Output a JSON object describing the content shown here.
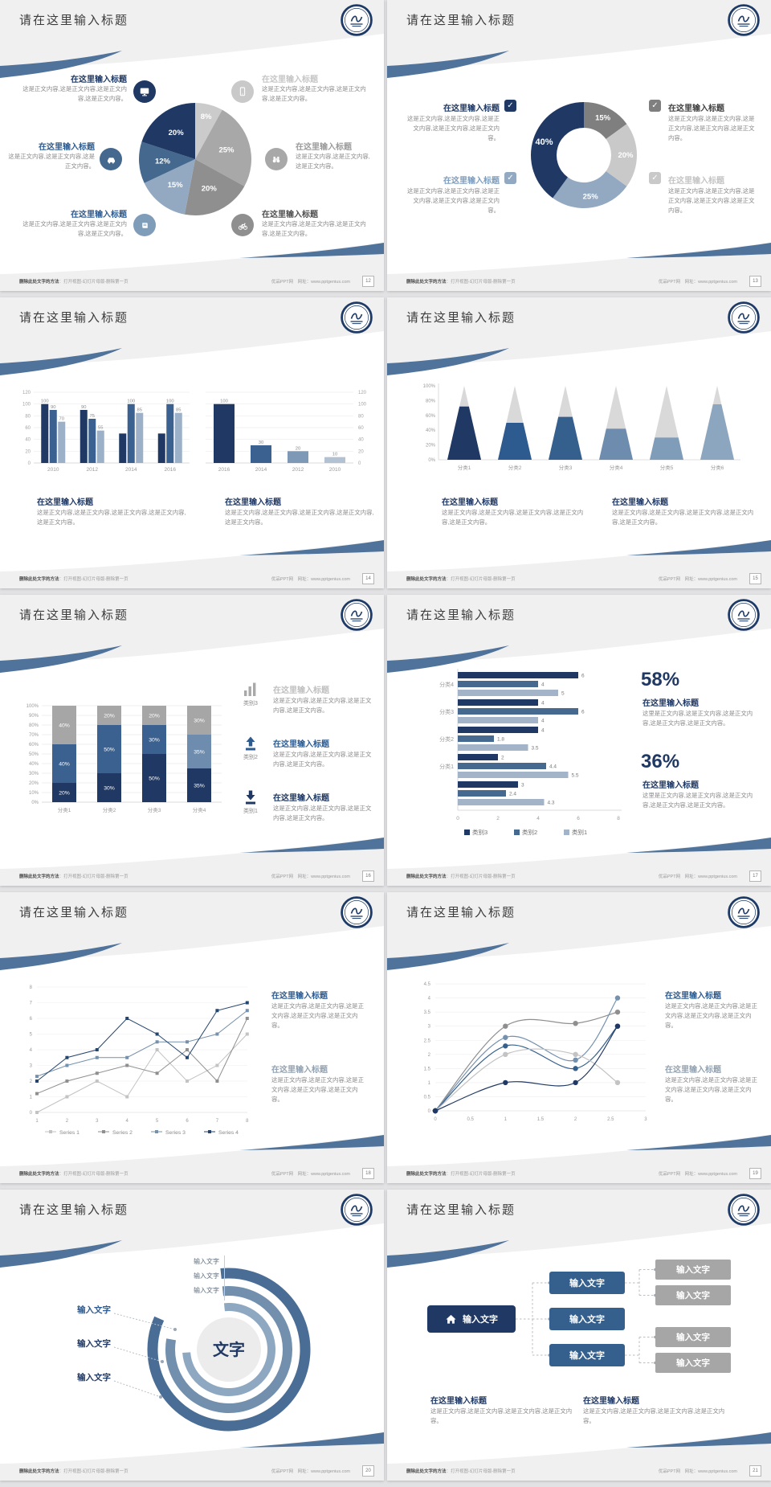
{
  "footer": {
    "left_bold": "删除此处文字的方法",
    "left_rest": "：打开视图-幻灯片母版-删除第一页",
    "right": "优品PPT网　网址：www.pptgenius.com"
  },
  "colors": {
    "accent_navy": "#1f3864",
    "accent_blue": "#2e5b8f",
    "accent_steel": "#8ca6c0",
    "swoosh_stripe": "#50739b",
    "band_gray": "#f0f0f1"
  },
  "slides": [
    {
      "page": "12",
      "title": "请在这里输入标题",
      "icons": [
        "monitor",
        "smartphone",
        "car",
        "binoculars",
        "book",
        "bicycle"
      ],
      "blocks": [
        {
          "h": "在这里输入标题",
          "b": "这是正文内容,这是正文内容,这是正文内容,这是正文内容。"
        },
        {
          "h": "在这里输入标题",
          "b": "这是正文内容,这是正文内容,这是正文内容,这是正文内容。"
        },
        {
          "h": "在这里输入标题",
          "b": "这是正文内容,这是正文内容,这是正文内容。"
        },
        {
          "h": "在这里输入标题",
          "b": "这是正文内容,这是正文内容,这是正文内容。"
        },
        {
          "h": "在这里输入标题",
          "b": "这是正文内容,这是正文内容,这是正文内容,这是正文内容。"
        },
        {
          "h": "在这里输入标题",
          "b": "这是正文内容,这是正文内容,这是正文内容,这是正文内容。"
        }
      ]
    },
    {
      "page": "13",
      "title": "请在这里输入标题",
      "blocks": [
        {
          "h": "在这里输入标题",
          "b": "这是正文内容,这是正文内容,这是正文内容,这是正文内容,这是正文内容。"
        },
        {
          "h": "在这里输入标题",
          "b": "这是正文内容,这是正文内容,这是正文内容,这是正文内容,这是正文内容。"
        },
        {
          "h": "在这里输入标题",
          "b": "这是正文内容,这是正文内容,这是正文内容,这是正文内容,这是正文内容。"
        },
        {
          "h": "在这里输入标题",
          "b": "这是正文内容,这是正文内容,这是正文内容,这是正文内容,这是正文内容。"
        }
      ]
    },
    {
      "page": "14",
      "title": "请在这里输入标题",
      "blocks": [
        {
          "h": "在这里输入标题",
          "b": "这是正文内容,这是正文内容,这是正文内容,这是正文内容,这是正文内容。"
        },
        {
          "h": "在这里输入标题",
          "b": "这是正文内容,这是正文内容,这是正文内容,这是正文内容,这是正文内容。"
        }
      ]
    },
    {
      "page": "15",
      "title": "请在这里输入标题",
      "blocks": [
        {
          "h": "在这里输入标题",
          "b": "这是正文内容,这是正文内容,这是正文内容,这是正文内容,这是正文内容。"
        },
        {
          "h": "在这里输入标题",
          "b": "这是正文内容,这是正文内容,这是正文内容,这是正文内容,这是正文内容。"
        }
      ]
    },
    {
      "page": "16",
      "title": "请在这里输入标题",
      "blocks": [
        {
          "label": "类别3",
          "h": "在这里输入标题",
          "b": "这是正文内容,这是正文内容,这是正文内容,这是正文内容。"
        },
        {
          "label": "类别2",
          "h": "在这里输入标题",
          "b": "这是正文内容,这是正文内容,这是正文内容,这是正文内容。"
        },
        {
          "label": "类别1",
          "h": "在这里输入标题",
          "b": "这是正文内容,这是正文内容,这是正文内容,这是正文内容。"
        }
      ]
    },
    {
      "page": "17",
      "title": "请在这里输入标题",
      "stats": [
        {
          "pct": "58%",
          "h": "在这里输入标题",
          "b": "这里是正文内容,这是正文内容,这是正文内容,这是正文内容,这是正文内容。"
        },
        {
          "pct": "36%",
          "h": "在这里输入标题",
          "b": "这里是正文内容,这是正文内容,这是正文内容,这是正文内容,这是正文内容。"
        }
      ]
    },
    {
      "page": "18",
      "title": "请在这里输入标题",
      "blocks": [
        {
          "h": "在这里输入标题",
          "b": "这是正文内容,这是正文内容,这是正文内容,这是正文内容,这是正文内容。"
        },
        {
          "h": "在这里输入标题",
          "b": "这是正文内容,这是正文内容,这是正文内容,这是正文内容,这是正文内容。"
        }
      ]
    },
    {
      "page": "19",
      "title": "请在这里输入标题",
      "blocks": [
        {
          "h": "在这里输入标题",
          "b": "这是正文内容,这是正文内容,这是正文内容,这是正文内容,这是正文内容。"
        },
        {
          "h": "在这里输入标题",
          "b": "这是正文内容,这是正文内容,这是正文内容,这是正文内容,这是正文内容。"
        }
      ]
    },
    {
      "page": "20",
      "title": "请在这里输入标题",
      "labels_top": [
        "输入文字",
        "输入文字",
        "输入文字"
      ],
      "labels_left": [
        "输入文字",
        "输入文字",
        "输入文字"
      ]
    },
    {
      "page": "21",
      "title": "请在这里输入标题",
      "boxes": {
        "root": "输入文字",
        "mid": [
          "输入文字",
          "输入文字",
          "输入文字"
        ],
        "leaf": [
          "输入文字",
          "输入文字",
          "输入文字",
          "输入文字"
        ]
      },
      "blocks": [
        {
          "h": "在这里输入标题",
          "b": "这是正文内容,这是正文内容,这是正文内容,这是正文内容。"
        },
        {
          "h": "在这里输入标题",
          "b": "这是正文内容,这是正文内容,这是正文内容,这是正文内容。"
        }
      ]
    }
  ],
  "chart_data": [
    {
      "id": "pie-12",
      "slide": "12",
      "type": "pie",
      "slices": [
        {
          "label": "8%",
          "value": 8,
          "color": "#cbcbcb"
        },
        {
          "label": "25%",
          "value": 25,
          "color": "#a8a8a8"
        },
        {
          "label": "20%",
          "value": 20,
          "color": "#8f8f8f"
        },
        {
          "label": "15%",
          "value": 15,
          "color": "#93a9c1"
        },
        {
          "label": "12%",
          "value": 12,
          "color": "#45688e"
        },
        {
          "label": "20%",
          "value": 20,
          "color": "#1f3864"
        }
      ]
    },
    {
      "id": "donut-13",
      "slide": "13",
      "type": "donut",
      "slices": [
        {
          "label": "15%",
          "value": 15,
          "color": "#7f7f7f"
        },
        {
          "label": "20%",
          "value": 20,
          "color": "#c9c9c9"
        },
        {
          "label": "25%",
          "value": 25,
          "color": "#93a9c1"
        },
        {
          "label": "40%",
          "value": 40,
          "color": "#1f3864"
        }
      ]
    },
    {
      "id": "bar-14-left",
      "slide": "14",
      "type": "bar",
      "axis": "left",
      "categories": [
        "2010",
        "2012",
        "2014",
        "2016"
      ],
      "ylim": [
        0,
        120
      ],
      "yticks": [
        0,
        20,
        40,
        60,
        80,
        100,
        120
      ],
      "series": [
        {
          "name": "系列1",
          "color": "#1f3864",
          "values": [
            100,
            90,
            50,
            50
          ],
          "labels": [
            "100",
            "90",
            "",
            ""
          ]
        },
        {
          "name": "系列2",
          "color": "#3a6190",
          "values": [
            90,
            75,
            100,
            100
          ],
          "labels": [
            "90",
            "75",
            "100",
            "100"
          ]
        },
        {
          "name": "系列3",
          "color": "#9cb0c7",
          "values": [
            70,
            55,
            85,
            85
          ],
          "labels": [
            "70",
            "55",
            "85",
            "85"
          ]
        }
      ]
    },
    {
      "id": "bar-14-right",
      "slide": "14",
      "type": "bar",
      "axis": "right",
      "categories": [
        "2016",
        "2014",
        "2012",
        "2010"
      ],
      "ylim": [
        0,
        120
      ],
      "yticks": [
        0,
        20,
        40,
        60,
        80,
        100,
        120
      ],
      "values": [
        100,
        30,
        20,
        10
      ],
      "labels": [
        "100",
        "30",
        "20",
        "10"
      ],
      "colors": [
        "#1f3864",
        "#3a6190",
        "#7d99b5",
        "#b3c2d3"
      ]
    },
    {
      "id": "cone-15",
      "slide": "15",
      "type": "cone",
      "categories": [
        "分类1",
        "分类2",
        "分类3",
        "分类4",
        "分类5",
        "分类6"
      ],
      "values": [
        72,
        50,
        58,
        42,
        30,
        75
      ],
      "colors": [
        "#1f3864",
        "#2e5b8f",
        "#35608d",
        "#6e8cad",
        "#7f9cb8",
        "#8ca6c0"
      ],
      "rest_color": "#d9d9d9",
      "yticks": [
        "0%",
        "20%",
        "40%",
        "60%",
        "80%",
        "100%"
      ]
    },
    {
      "id": "stacked-16",
      "slide": "16",
      "type": "stacked_bar",
      "categories": [
        "分类1",
        "分类2",
        "分类3",
        "分类4"
      ],
      "yticks_pct": [
        0,
        10,
        20,
        30,
        40,
        50,
        60,
        70,
        80,
        90,
        100
      ],
      "series": [
        {
          "name": "底部",
          "color": "#1f3864",
          "values": [
            20,
            30,
            50,
            35
          ],
          "labels": [
            "20%",
            "30%",
            "50%",
            "35%"
          ]
        },
        {
          "name": "中部",
          "colors": [
            "#3a6190",
            "#3a6190",
            "#3a6190",
            "#6e8cad"
          ],
          "values": [
            40,
            50,
            30,
            35
          ],
          "labels": [
            "40%",
            "50%",
            "30%",
            "35%"
          ]
        },
        {
          "name": "顶部",
          "color": "#a6a6a6",
          "values": [
            40,
            20,
            20,
            30
          ],
          "labels": [
            "40%",
            "20%",
            "20%",
            "30%"
          ]
        }
      ]
    },
    {
      "id": "barh-17",
      "slide": "17",
      "type": "barh",
      "groups": [
        "分类4",
        "分类3",
        "分类2",
        "分类1",
        ""
      ],
      "xlim": [
        0,
        8
      ],
      "xticks": [
        0,
        2,
        4,
        6,
        8
      ],
      "series": [
        {
          "name": "类别3",
          "color": "#1f3864",
          "values": [
            6,
            4,
            4,
            2,
            3
          ]
        },
        {
          "name": "类别2",
          "color": "#46698f",
          "values": [
            4,
            6,
            1.8,
            4.4,
            2.4
          ]
        },
        {
          "name": "类别1",
          "color": "#a3b4c8",
          "values": [
            5,
            4,
            3.5,
            5.5,
            4.3
          ]
        }
      ],
      "legend": [
        "类别3",
        "类别2",
        "类别1"
      ]
    },
    {
      "id": "line-18",
      "slide": "18",
      "type": "line",
      "x": [
        1,
        2,
        3,
        4,
        5,
        6,
        7,
        8
      ],
      "ylim": [
        0,
        8
      ],
      "series": [
        {
          "name": "Series 1",
          "color": "#c3c3c3",
          "values": [
            0,
            1,
            2,
            1,
            4,
            2,
            3,
            5
          ]
        },
        {
          "name": "Series 2",
          "color": "#8f8f8f",
          "values": [
            1.2,
            2,
            2.5,
            3,
            2.5,
            4,
            2,
            6
          ]
        },
        {
          "name": "Series 3",
          "color": "#7591ad",
          "values": [
            2.3,
            3,
            3.5,
            3.5,
            4.5,
            4.5,
            5,
            6.5
          ]
        },
        {
          "name": "Series 4",
          "color": "#24456e",
          "values": [
            2,
            3.5,
            4,
            6,
            5,
            3.5,
            6.5,
            7
          ]
        }
      ],
      "legend_position": "bottom"
    },
    {
      "id": "curve-19",
      "slide": "19",
      "type": "curve",
      "x": [
        0,
        1,
        2,
        2.6
      ],
      "ylim": [
        0,
        4.5
      ],
      "xticks": [
        0,
        0.5,
        1,
        1.5,
        2,
        2.5,
        3
      ],
      "series": [
        {
          "color": "#8f8f8f",
          "values": [
            0,
            3,
            3.1,
            3.5
          ]
        },
        {
          "color": "#7591ad",
          "values": [
            0,
            2.6,
            1.8,
            4
          ]
        },
        {
          "color": "#35608d",
          "values": [
            0,
            2.3,
            1.5,
            3
          ]
        },
        {
          "color": "#c3c3c3",
          "values": [
            0,
            2,
            2,
            1
          ]
        },
        {
          "color": "#1f3864",
          "values": [
            0,
            1,
            1,
            3
          ]
        }
      ]
    },
    {
      "id": "rings-20",
      "slide": "20",
      "type": "rings",
      "center_label": "文字",
      "rings": [
        {
          "color": "#4a6d96"
        },
        {
          "color": "#7290ad"
        },
        {
          "color": "#8ea8c2"
        }
      ]
    }
  ]
}
